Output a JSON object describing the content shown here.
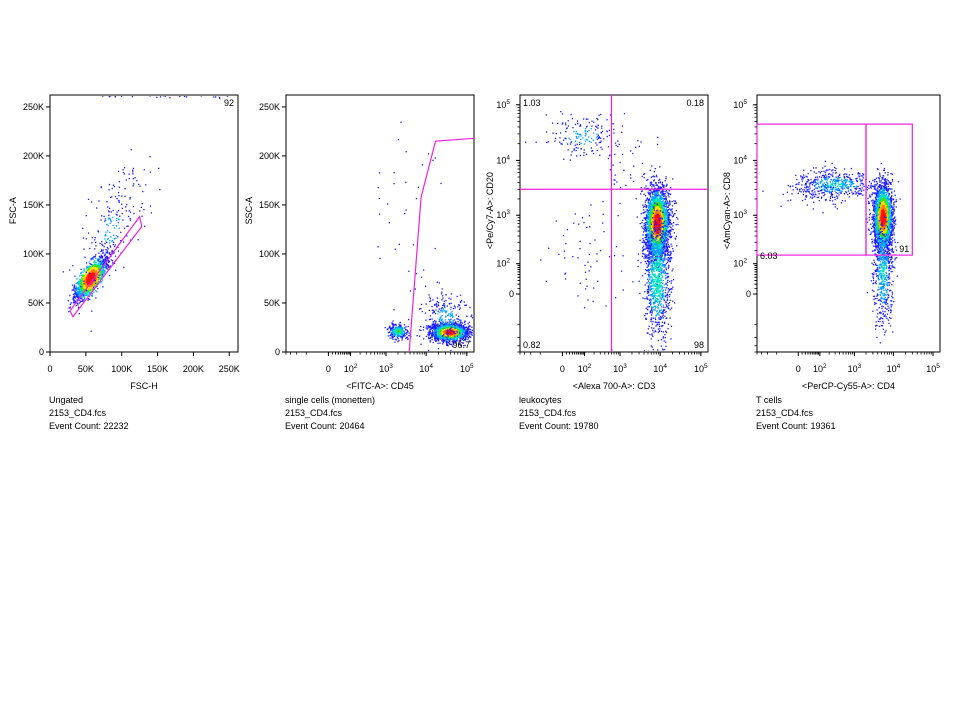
{
  "colors": {
    "gate": "#ee22dd",
    "density": [
      "#1a1aff",
      "#00a0ff",
      "#00e0c0",
      "#40e000",
      "#ffe000",
      "#ff8000",
      "#ff1010"
    ]
  },
  "chart_data": [
    {
      "type": "scatter",
      "xlabel": "FSC-H",
      "ylabel": "FSC-A",
      "x_scale": "linear",
      "y_scale": "linear",
      "xlim": [
        0,
        262144
      ],
      "ylim": [
        0,
        262144
      ],
      "x_ticks": [
        {
          "v": 0,
          "label": "0"
        },
        {
          "v": 50000,
          "label": "50K"
        },
        {
          "v": 100000,
          "label": "100K"
        },
        {
          "v": 150000,
          "label": "150K"
        },
        {
          "v": 200000,
          "label": "200K"
        },
        {
          "v": 250000,
          "label": "250K"
        }
      ],
      "y_ticks": [
        {
          "v": 0,
          "label": "0"
        },
        {
          "v": 50000,
          "label": "50K"
        },
        {
          "v": 100000,
          "label": "100K"
        },
        {
          "v": 150000,
          "label": "150K"
        },
        {
          "v": 200000,
          "label": "200K"
        },
        {
          "v": 250000,
          "label": "250K"
        }
      ],
      "gate": {
        "shape": "polygon",
        "points": [
          [
            28000,
            42000
          ],
          [
            32000,
            36000
          ],
          [
            128000,
            128000
          ],
          [
            125000,
            138000
          ]
        ]
      },
      "gate_stats": [
        {
          "value": "92",
          "pos": "top-right"
        }
      ],
      "caption": [
        "Ungated",
        "2153_CD4.fcs",
        "Event Count: 22232"
      ],
      "populations": [
        {
          "center": [
            57000,
            75000
          ],
          "axis": [
            0.72,
            0.69
          ],
          "spread_along": 14000,
          "spread_across": 5000,
          "count": 1700,
          "density": 1.0
        },
        {
          "center": [
            85000,
            125000
          ],
          "axis": [
            0.5,
            0.86
          ],
          "spread_along": 40000,
          "spread_across": 16000,
          "count": 240,
          "density": 0.15
        },
        {
          "center": [
            180000,
            262000
          ],
          "axis": [
            1,
            0
          ],
          "spread_along": 50000,
          "spread_across": 1500,
          "count": 50,
          "density": 0.1
        }
      ]
    },
    {
      "type": "scatter",
      "xlabel": "<FITC-A>: CD45",
      "ylabel": "SSC-A",
      "x_scale": "biexponential",
      "y_scale": "linear",
      "xlim": [
        -400,
        150000
      ],
      "ylim": [
        0,
        262144
      ],
      "x_ticks": [
        {
          "v": 0,
          "label": "0"
        },
        {
          "v": 100,
          "label": "10",
          "exp": "2"
        },
        {
          "v": 1000,
          "label": "10",
          "exp": "3"
        },
        {
          "v": 10000,
          "label": "10",
          "exp": "4"
        },
        {
          "v": 100000,
          "label": "10",
          "exp": "5"
        }
      ],
      "y_ticks": [
        {
          "v": 0,
          "label": "0"
        },
        {
          "v": 50000,
          "label": "50K"
        },
        {
          "v": 100000,
          "label": "100K"
        },
        {
          "v": 150000,
          "label": "150K"
        },
        {
          "v": 200000,
          "label": "200K"
        },
        {
          "v": 250000,
          "label": "250K"
        }
      ],
      "gate": {
        "shape": "polyline",
        "points": [
          [
            3800,
            0
          ],
          [
            7500,
            158000
          ],
          [
            17000,
            215000
          ],
          [
            150000,
            218000
          ]
        ]
      },
      "gate_stats": [
        {
          "value": "96.7",
          "pos": "bottom-right"
        }
      ],
      "caption": [
        "single cells (monetten)",
        "2153_CD4.fcs",
        "Event Count: 20464"
      ],
      "populations": [
        {
          "center": [
            38000,
            20000
          ],
          "spread": [
            0.22,
            4500
          ],
          "count": 1500,
          "density": 1.0
        },
        {
          "center": [
            30000,
            34000
          ],
          "spread": [
            0.3,
            14000
          ],
          "count": 250,
          "density": 0.2
        },
        {
          "center": [
            2000,
            21000
          ],
          "spread": [
            0.12,
            4000
          ],
          "count": 260,
          "density": 0.45
        },
        {
          "center": [
            4000,
            120000
          ],
          "spread": [
            0.6,
            60000
          ],
          "count": 40,
          "density": 0.08
        }
      ]
    },
    {
      "type": "scatter",
      "xlabel": "<Alexa 700-A>: CD3",
      "ylabel": "<Pe/Cy7-A>: CD20",
      "x_scale": "biexponential",
      "y_scale": "biexponential",
      "xlim": [
        -400,
        150000
      ],
      "ylim": [
        -400,
        150000
      ],
      "x_ticks": [
        {
          "v": 0,
          "label": "0"
        },
        {
          "v": 100,
          "label": "10",
          "exp": "2"
        },
        {
          "v": 1000,
          "label": "10",
          "exp": "3"
        },
        {
          "v": 10000,
          "label": "10",
          "exp": "4"
        },
        {
          "v": 100000,
          "label": "10",
          "exp": "5"
        }
      ],
      "y_ticks": [
        {
          "v": 0,
          "label": "0"
        },
        {
          "v": 100,
          "label": "10",
          "exp": "2"
        },
        {
          "v": 1000,
          "label": "10",
          "exp": "3"
        },
        {
          "v": 10000,
          "label": "10",
          "exp": "4"
        },
        {
          "v": 100000,
          "label": "10",
          "exp": "5"
        }
      ],
      "gate": {
        "shape": "quadrant",
        "x": 600,
        "y": 3000
      },
      "gate_stats": [
        {
          "value": "1.03",
          "pos": "top-left"
        },
        {
          "value": "0.18",
          "pos": "top-right"
        },
        {
          "value": "0.82",
          "pos": "bottom-left"
        },
        {
          "value": "98",
          "pos": "bottom-right"
        }
      ],
      "caption": [
        "leukocytes",
        "2153_CD4.fcs",
        "Event Count: 19780"
      ],
      "populations": [
        {
          "center": [
            8500,
            700
          ],
          "spread": [
            0.15,
            0.32
          ],
          "count": 2600,
          "density": 1.0
        },
        {
          "center": [
            8500,
            40
          ],
          "spread": [
            0.16,
            0.55
          ],
          "count": 900,
          "density": 0.4
        },
        {
          "center": [
            80,
            28000
          ],
          "spread": [
            0.45,
            0.18
          ],
          "count": 170,
          "density": 0.22
        },
        {
          "center": [
            80,
            150
          ],
          "spread": [
            0.5,
            0.5
          ],
          "count": 60,
          "density": 0.06
        },
        {
          "center": [
            2000,
            8000
          ],
          "spread": [
            0.4,
            0.35
          ],
          "count": 40,
          "density": 0.06
        }
      ]
    },
    {
      "type": "scatter",
      "xlabel": "<PerCP-Cy55-A>: CD4",
      "ylabel": "<AmCyan-A>: CD8",
      "x_scale": "biexponential",
      "y_scale": "biexponential",
      "xlim": [
        -400,
        150000
      ],
      "ylim": [
        -400,
        150000
      ],
      "x_ticks": [
        {
          "v": 0,
          "label": "0"
        },
        {
          "v": 100,
          "label": "10",
          "exp": "2"
        },
        {
          "v": 1000,
          "label": "10",
          "exp": "3"
        },
        {
          "v": 10000,
          "label": "10",
          "exp": "4"
        },
        {
          "v": 100000,
          "label": "10",
          "exp": "5"
        }
      ],
      "y_ticks": [
        {
          "v": 0,
          "label": "0"
        },
        {
          "v": 100,
          "label": "10",
          "exp": "2"
        },
        {
          "v": 1000,
          "label": "10",
          "exp": "3"
        },
        {
          "v": 10000,
          "label": "10",
          "exp": "4"
        },
        {
          "v": 100000,
          "label": "10",
          "exp": "5"
        }
      ],
      "gate": {
        "shape": "rects",
        "rects": [
          [
            -400,
            160,
            2000,
            45000
          ],
          [
            2000,
            160,
            30000,
            45000
          ]
        ]
      },
      "gate_stats": [
        {
          "value": "6.03",
          "pos": "gate1-bottom-left"
        },
        {
          "value": "91",
          "pos": "gate2-bottom-right"
        }
      ],
      "caption": [
        "T cells",
        "2153_CD4.fcs",
        "Event Count: 19361"
      ],
      "populations": [
        {
          "center": [
            5500,
            900
          ],
          "spread": [
            0.12,
            0.3
          ],
          "count": 2400,
          "density": 1.0
        },
        {
          "center": [
            5500,
            60
          ],
          "spread": [
            0.12,
            0.5
          ],
          "count": 500,
          "density": 0.3
        },
        {
          "center": [
            300,
            3600
          ],
          "spread": [
            0.5,
            0.12
          ],
          "count": 450,
          "density": 0.3
        },
        {
          "center": [
            80,
            3000
          ],
          "spread": [
            0.4,
            0.18
          ],
          "count": 90,
          "density": 0.1
        }
      ]
    }
  ]
}
